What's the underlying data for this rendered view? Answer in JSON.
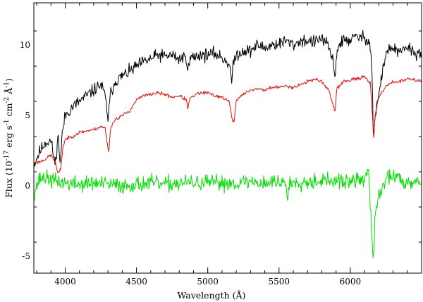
{
  "chart_data": {
    "type": "line",
    "title": "",
    "xlabel": "Wavelength (Å)",
    "ylabel": {
      "base": "Flux (10",
      "exp1": "-17",
      "mid1": " erg s",
      "exp2": "-1",
      "mid2": " cm",
      "exp3": "-2",
      "mid3": " Å",
      "exp4": "-1",
      "end": ")"
    },
    "xlim": [
      3780,
      6500
    ],
    "ylim": [
      -6.2,
      13.0
    ],
    "x_ticks": [
      4000,
      4500,
      5000,
      5500,
      6000
    ],
    "x_tick_labels": [
      "4000",
      "4500",
      "5000",
      "5500",
      "6000"
    ],
    "y_ticks": [
      -5,
      0,
      5,
      10
    ],
    "y_tick_labels": [
      "-5",
      "0",
      "5",
      "10"
    ],
    "grid": false,
    "legend": "none",
    "series": [
      {
        "color": "#000000",
        "noise": 0.45,
        "seed": 11,
        "x": [
          3780,
          3820,
          3860,
          3900,
          3930,
          3950,
          3965,
          3980,
          4000,
          4050,
          4100,
          4150,
          4200,
          4250,
          4280,
          4300,
          4320,
          4350,
          4400,
          4450,
          4500,
          4550,
          4600,
          4650,
          4700,
          4750,
          4800,
          4850,
          4861,
          4880,
          4920,
          4950,
          5000,
          5050,
          5100,
          5150,
          5170,
          5180,
          5200,
          5250,
          5300,
          5350,
          5400,
          5450,
          5500,
          5550,
          5600,
          5650,
          5700,
          5750,
          5800,
          5850,
          5880,
          5893,
          5910,
          5950,
          6000,
          6050,
          6100,
          6130,
          6150,
          6163,
          6175,
          6200,
          6250,
          6300,
          6350,
          6400,
          6450,
          6500
        ],
        "y": [
          1.5,
          2.4,
          3.1,
          3.2,
          1.5,
          3.6,
          1.6,
          3.8,
          5.0,
          5.6,
          6.0,
          6.4,
          6.8,
          7.2,
          6.4,
          4.8,
          6.6,
          7.4,
          7.8,
          8.1,
          8.5,
          8.8,
          9.0,
          9.3,
          9.2,
          9.3,
          9.0,
          9.2,
          8.2,
          9.1,
          9.2,
          9.3,
          9.3,
          9.4,
          9.1,
          8.7,
          7.3,
          8.8,
          9.3,
          9.6,
          9.6,
          10.0,
          9.8,
          10.0,
          10.1,
          10.3,
          10.0,
          10.3,
          10.3,
          10.2,
          10.5,
          9.8,
          8.8,
          7.8,
          9.9,
          10.3,
          10.4,
          10.6,
          10.5,
          10.4,
          9.0,
          3.2,
          5.0,
          6.5,
          9.5,
          9.8,
          9.4,
          9.9,
          9.4,
          9.5
        ]
      },
      {
        "color": "#e8100c",
        "noise": 0.12,
        "seed": 23,
        "x": [
          3780,
          3820,
          3860,
          3900,
          3930,
          3950,
          3968,
          3985,
          4000,
          4050,
          4100,
          4150,
          4200,
          4250,
          4280,
          4295,
          4305,
          4320,
          4350,
          4400,
          4450,
          4500,
          4550,
          4600,
          4650,
          4700,
          4750,
          4800,
          4850,
          4861,
          4875,
          4920,
          4950,
          5000,
          5050,
          5100,
          5150,
          5170,
          5183,
          5200,
          5250,
          5300,
          5350,
          5400,
          5450,
          5500,
          5550,
          5600,
          5650,
          5700,
          5750,
          5800,
          5850,
          5880,
          5893,
          5905,
          5950,
          6000,
          6050,
          6100,
          6140,
          6155,
          6163,
          6175,
          6200,
          6250,
          6300,
          6350,
          6400,
          6450,
          6500
        ],
        "y": [
          1.6,
          1.7,
          1.9,
          2.2,
          1.7,
          0.8,
          1.2,
          2.8,
          3.3,
          3.5,
          3.8,
          3.9,
          4.0,
          4.2,
          4.1,
          3.0,
          2.4,
          4.2,
          4.7,
          5.0,
          5.3,
          6.1,
          6.4,
          6.5,
          6.6,
          6.5,
          6.3,
          6.4,
          6.1,
          5.5,
          6.2,
          6.5,
          6.6,
          6.6,
          6.4,
          6.3,
          6.0,
          4.8,
          4.4,
          6.1,
          6.5,
          6.8,
          6.9,
          6.8,
          7.0,
          7.0,
          7.1,
          7.0,
          7.2,
          7.4,
          7.6,
          7.4,
          6.8,
          5.6,
          5.3,
          6.9,
          7.4,
          7.5,
          7.6,
          7.8,
          7.3,
          5.0,
          3.3,
          5.0,
          6.3,
          7.1,
          7.4,
          7.4,
          7.6,
          7.5,
          7.5
        ]
      },
      {
        "color": "#00e000",
        "noise": 0.55,
        "seed": 37,
        "x": [
          3780,
          3820,
          3860,
          3900,
          3950,
          4000,
          4100,
          4200,
          4300,
          4400,
          4500,
          4600,
          4700,
          4800,
          4900,
          5000,
          5100,
          5200,
          5300,
          5400,
          5500,
          5550,
          5560,
          5575,
          5600,
          5700,
          5800,
          5900,
          6000,
          6100,
          6130,
          6140,
          6150,
          6160,
          6168,
          6175,
          6185,
          6200,
          6250,
          6300,
          6350,
          6400,
          6450,
          6500
        ],
        "y": [
          -0.5,
          0.5,
          0.6,
          0.4,
          0.3,
          0.2,
          0.1,
          0.2,
          0.1,
          0.0,
          0.1,
          0.2,
          0.1,
          0.2,
          0.2,
          0.2,
          0.2,
          0.2,
          0.3,
          0.2,
          0.3,
          0.2,
          -0.9,
          0.1,
          0.3,
          0.3,
          0.4,
          0.3,
          0.3,
          0.5,
          1.2,
          -1.5,
          -3.5,
          -5.5,
          -3.8,
          -2.2,
          -1.2,
          -0.8,
          0.5,
          0.8,
          0.4,
          0.3,
          0.4,
          0.2
        ]
      }
    ]
  }
}
